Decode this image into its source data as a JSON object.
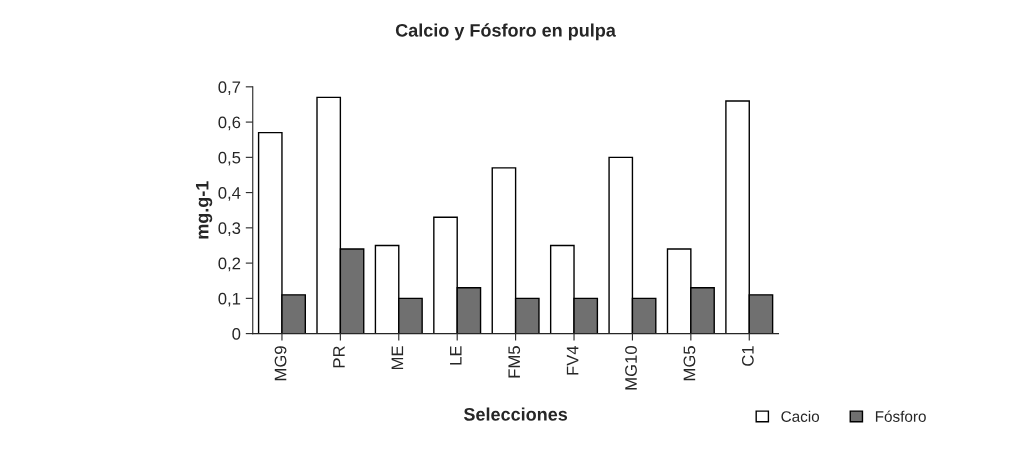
{
  "chart_data": {
    "type": "bar",
    "title": "Calcio y Fósforo en pulpa",
    "xlabel": "Selecciones",
    "ylabel": "mg.g-1",
    "categories": [
      "MG9",
      "PR",
      "ME",
      "LE",
      "FM5",
      "FV4",
      "MG10",
      "MG5",
      "C1"
    ],
    "series": [
      {
        "name": "Cacio",
        "color": "#ffffff",
        "values": [
          0.57,
          0.67,
          0.25,
          0.33,
          0.47,
          0.25,
          0.5,
          0.24,
          0.66
        ]
      },
      {
        "name": "Fósforo",
        "color": "#707070",
        "values": [
          0.11,
          0.24,
          0.1,
          0.13,
          0.1,
          0.1,
          0.1,
          0.13,
          0.11
        ]
      }
    ],
    "ylim": [
      0,
      0.7
    ],
    "yticks": [
      {
        "value": 0,
        "label": "0"
      },
      {
        "value": 0.1,
        "label": "0,1"
      },
      {
        "value": 0.2,
        "label": "0,2"
      },
      {
        "value": 0.3,
        "label": "0,3"
      },
      {
        "value": 0.4,
        "label": "0,4"
      },
      {
        "value": 0.5,
        "label": "0,5"
      },
      {
        "value": 0.6,
        "label": "0,6"
      },
      {
        "value": 0.7,
        "label": "0,7"
      }
    ],
    "grid": false,
    "legend": "bottom right"
  }
}
